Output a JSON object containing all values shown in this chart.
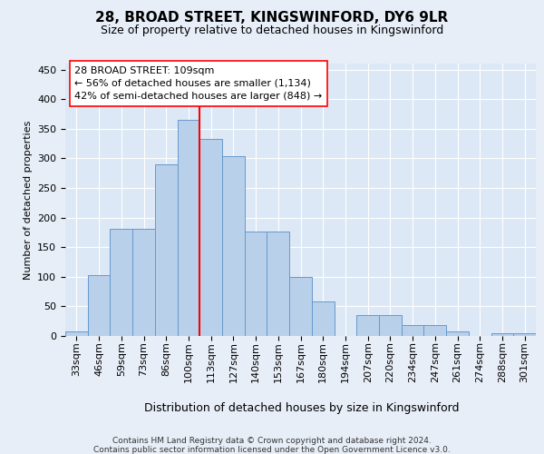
{
  "title1": "28, BROAD STREET, KINGSWINFORD, DY6 9LR",
  "title2": "Size of property relative to detached houses in Kingswinford",
  "xlabel": "Distribution of detached houses by size in Kingswinford",
  "ylabel": "Number of detached properties",
  "categories": [
    "33sqm",
    "46sqm",
    "59sqm",
    "73sqm",
    "86sqm",
    "100sqm",
    "113sqm",
    "127sqm",
    "140sqm",
    "153sqm",
    "167sqm",
    "180sqm",
    "194sqm",
    "207sqm",
    "220sqm",
    "234sqm",
    "247sqm",
    "261sqm",
    "274sqm",
    "288sqm",
    "301sqm"
  ],
  "values": [
    8,
    103,
    181,
    181,
    290,
    365,
    333,
    303,
    176,
    176,
    100,
    58,
    0,
    35,
    35,
    18,
    18,
    8,
    0,
    5,
    5
  ],
  "bar_color": "#b8d0ea",
  "bar_edge_color": "#6699cc",
  "vline_color": "red",
  "annotation_line1": "28 BROAD STREET: 109sqm",
  "annotation_line2": "← 56% of detached houses are smaller (1,134)",
  "annotation_line3": "42% of semi-detached houses are larger (848) →",
  "footer1": "Contains HM Land Registry data © Crown copyright and database right 2024.",
  "footer2": "Contains public sector information licensed under the Open Government Licence v3.0.",
  "ylim": [
    0,
    460
  ],
  "yticks": [
    0,
    50,
    100,
    150,
    200,
    250,
    300,
    350,
    400,
    450
  ],
  "background_color": "#e8eef8",
  "plot_bg_color": "#dce8f5",
  "title1_fontsize": 11,
  "title2_fontsize": 9,
  "ylabel_fontsize": 8,
  "xlabel_fontsize": 9,
  "tick_fontsize": 8,
  "xtick_fontsize": 8,
  "footer_fontsize": 6.5,
  "annotation_fontsize": 8
}
